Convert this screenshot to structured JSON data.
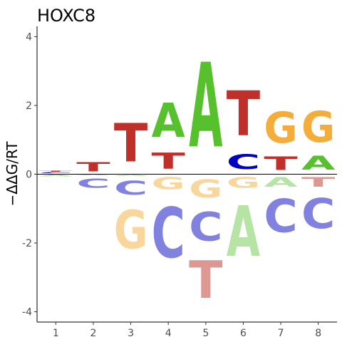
{
  "chart_data": {
    "type": "sequence-logo",
    "title": "HOXC8",
    "xlabel": "",
    "ylabel": "−ΔΔG/RT",
    "positions": [
      1,
      2,
      3,
      4,
      5,
      6,
      7,
      8
    ],
    "ylim": [
      -4.3,
      4.3
    ],
    "yticks": [
      -4,
      -2,
      0,
      2,
      4
    ],
    "grid": false,
    "colors": {
      "A_pos": "#56c12c",
      "A_neg": "#b6e4a4",
      "C_pos": "#0000c0",
      "C_neg": "#8181e0",
      "G_pos": "#f4ac3a",
      "G_neg": "#f9d69c",
      "T_pos": "#c0302a",
      "T_neg": "#de9894"
    },
    "stacks": [
      {
        "position": 1,
        "positive": [
          {
            "letter": "G",
            "value": 0.02
          },
          {
            "letter": "C",
            "value": 0.04
          },
          {
            "letter": "T",
            "value": 0.05
          }
        ],
        "negative": [
          {
            "letter": "A",
            "value": 0.08
          }
        ]
      },
      {
        "position": 2,
        "positive": [
          {
            "letter": "T",
            "value": 0.42
          }
        ],
        "negative": [
          {
            "letter": "A",
            "value": 0.04
          },
          {
            "letter": "C",
            "value": 0.44
          }
        ]
      },
      {
        "position": 3,
        "positive": [
          {
            "letter": "T",
            "value": 1.8
          }
        ],
        "negative": [
          {
            "letter": "A",
            "value": 0.07
          },
          {
            "letter": "C",
            "value": 0.65
          },
          {
            "letter": "G",
            "value": 1.8
          }
        ]
      },
      {
        "position": 4,
        "positive": [
          {
            "letter": "T",
            "value": 0.75
          },
          {
            "letter": "A",
            "value": 1.6
          }
        ],
        "negative": [
          {
            "letter": "G",
            "value": 0.55
          },
          {
            "letter": "C",
            "value": 2.35
          }
        ]
      },
      {
        "position": 5,
        "positive": [
          {
            "letter": "A",
            "value": 3.95
          }
        ],
        "negative": [
          {
            "letter": "G",
            "value": 0.85
          },
          {
            "letter": "C",
            "value": 1.35
          },
          {
            "letter": "T",
            "value": 1.75
          }
        ]
      },
      {
        "position": 6,
        "positive": [
          {
            "letter": "C",
            "value": 0.7
          },
          {
            "letter": "T",
            "value": 2.1
          }
        ],
        "negative": [
          {
            "letter": "G",
            "value": 0.5
          },
          {
            "letter": "A",
            "value": 2.35
          }
        ]
      },
      {
        "position": 7,
        "positive": [
          {
            "letter": "T",
            "value": 0.62
          },
          {
            "letter": "G",
            "value": 1.45
          }
        ],
        "negative": [
          {
            "letter": "A",
            "value": 0.45
          },
          {
            "letter": "C",
            "value": 1.55
          }
        ]
      },
      {
        "position": 8,
        "positive": [
          {
            "letter": "A",
            "value": 0.65
          },
          {
            "letter": "G",
            "value": 1.45
          }
        ],
        "negative": [
          {
            "letter": "T",
            "value": 0.45
          },
          {
            "letter": "C",
            "value": 1.4
          }
        ]
      }
    ]
  }
}
